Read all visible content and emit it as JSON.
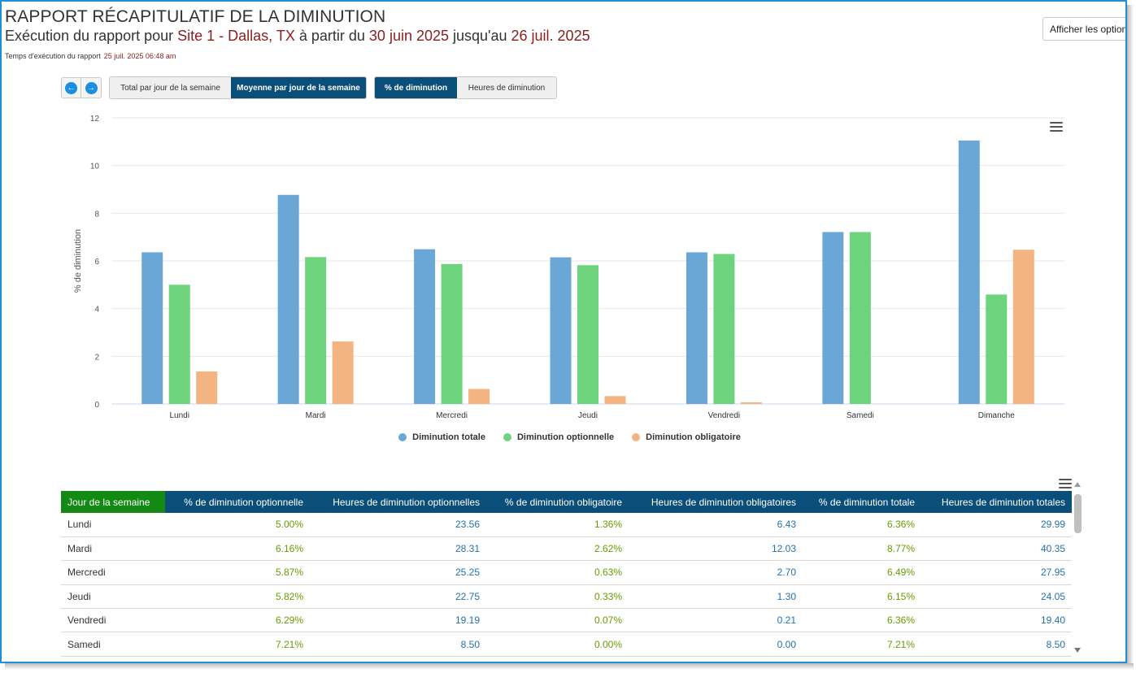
{
  "header": {
    "title": "RAPPORT RÉCAPITULATIF DE LA DIMINUTION",
    "subtitle_prefix": "Exécution du rapport pour ",
    "site": "Site 1 - Dallas, TX",
    "subtitle_mid": " à partir du ",
    "start_date": "30 juin 2025",
    "subtitle_until": " jusqu'au ",
    "end_date": "26 juil. 2025",
    "runtime_label": "Temps d'exécution du rapport",
    "runtime_value": "25 juil. 2025 06:48 am",
    "options_button": "Afficher les options"
  },
  "toolbar": {
    "prev_icon": "arrow-left-circle-icon",
    "next_icon": "arrow-right-circle-icon",
    "view_tabs": [
      "Total par jour de la semaine",
      "Moyenne par jour de la semaine"
    ],
    "view_active": "Moyenne par jour de la semaine",
    "metric_tabs": [
      "% de diminution",
      "Heures de diminution"
    ],
    "metric_active": "% de diminution"
  },
  "chart_data": {
    "type": "bar",
    "title": "",
    "xlabel": "",
    "ylabel": "% de diminution",
    "ylim": [
      0,
      12
    ],
    "yticks": [
      0,
      2,
      4,
      6,
      8,
      10,
      12
    ],
    "grid": true,
    "legend": "bottom-center",
    "categories": [
      "Lundi",
      "Mardi",
      "Mercredi",
      "Jeudi",
      "Vendredi",
      "Samedi",
      "Dimanche"
    ],
    "series": [
      {
        "name": "Diminution totale",
        "color": "#6aa6d6",
        "values": [
          6.36,
          8.77,
          6.49,
          6.15,
          6.36,
          7.21,
          11.05
        ]
      },
      {
        "name": "Diminution optionnelle",
        "color": "#6dd37d",
        "values": [
          5.0,
          6.16,
          5.87,
          5.82,
          6.29,
          7.21,
          4.59
        ]
      },
      {
        "name": "Diminution obligatoire",
        "color": "#f4b482",
        "values": [
          1.36,
          2.62,
          0.63,
          0.33,
          0.07,
          0.0,
          6.47
        ]
      }
    ]
  },
  "table": {
    "columns": [
      "Jour de la semaine",
      "% de diminution optionnelle",
      "Heures de diminution optionnelles",
      "% de diminution obligatoire",
      "Heures de diminution obligatoires",
      "% de diminution totale",
      "Heures de diminution totales"
    ],
    "rows": [
      [
        "Lundi",
        "5.00%",
        "23.56",
        "1.36%",
        "6.43",
        "6.36%",
        "29.99"
      ],
      [
        "Mardi",
        "6.16%",
        "28.31",
        "2.62%",
        "12.03",
        "8.77%",
        "40.35"
      ],
      [
        "Mercredi",
        "5.87%",
        "25.25",
        "0.63%",
        "2.70",
        "6.49%",
        "27.95"
      ],
      [
        "Jeudi",
        "5.82%",
        "22.75",
        "0.33%",
        "1.30",
        "6.15%",
        "24.05"
      ],
      [
        "Vendredi",
        "6.29%",
        "19.19",
        "0.07%",
        "0.21",
        "6.36%",
        "19.40"
      ],
      [
        "Samedi",
        "7.21%",
        "8.50",
        "0.00%",
        "0.00",
        "7.21%",
        "8.50"
      ]
    ]
  },
  "colors": {
    "accent": "#0a4f7a",
    "first_header": "#138a13",
    "highlight_text": "#8b1d1d",
    "pct_text": "#6a9a00",
    "hours_text": "#2470b0",
    "frame_border": "#1e8fd6"
  }
}
